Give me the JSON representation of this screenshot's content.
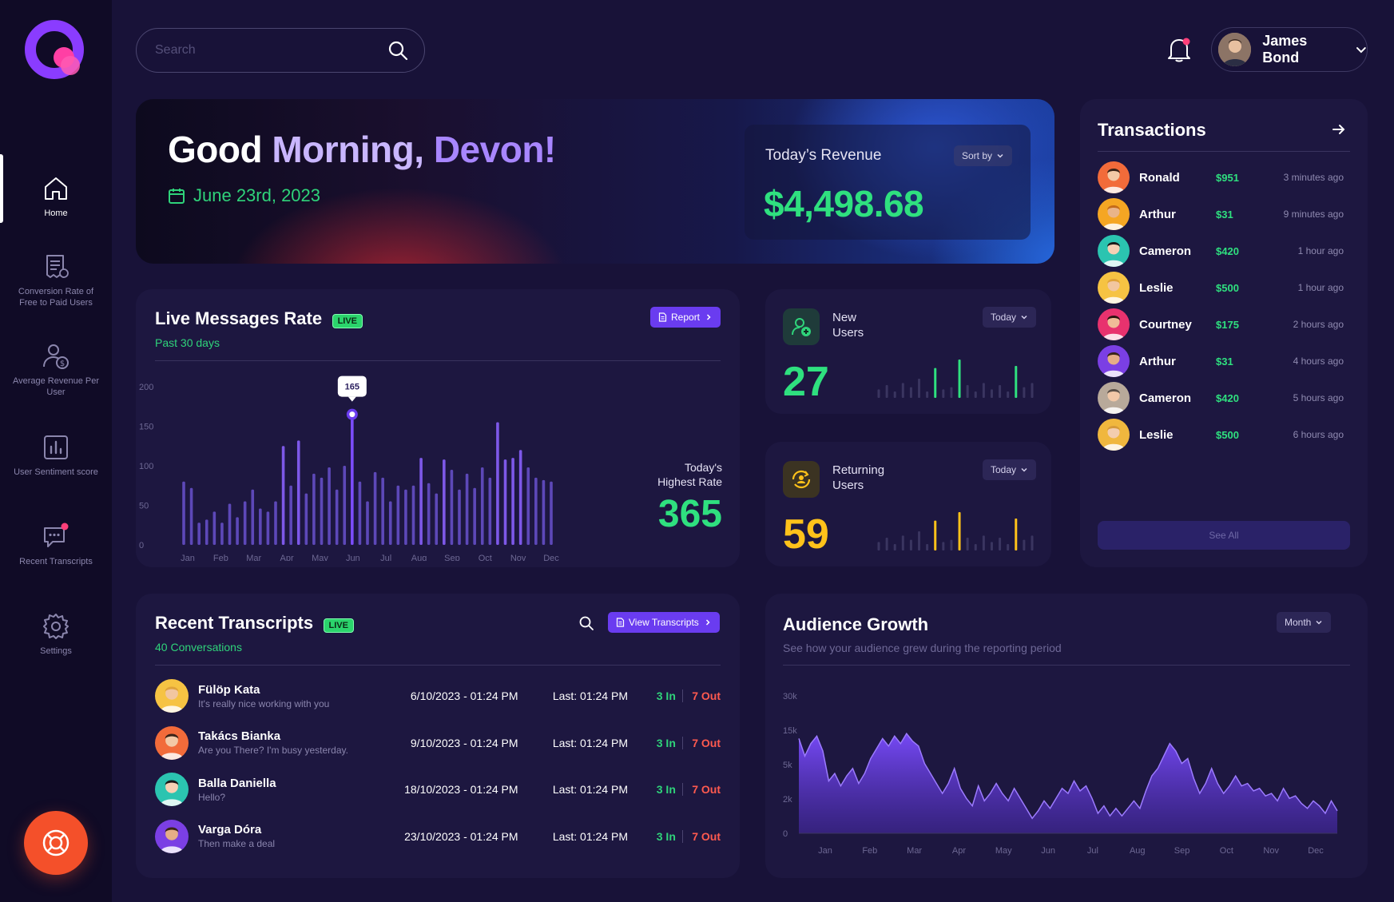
{
  "sidebar": {
    "items": [
      {
        "label": "Home"
      },
      {
        "label": "Conversion Rate of Free to Paid Users"
      },
      {
        "label": "Average Revenue Per User"
      },
      {
        "label": "User Sentiment score"
      },
      {
        "label": "Recent Transcripts"
      },
      {
        "label": "Settings"
      }
    ]
  },
  "header": {
    "search_placeholder": "Search",
    "user_name": "James Bond"
  },
  "hero": {
    "greeting_part1": "Good ",
    "greeting_part2": "Morning, ",
    "greeting_part3": "Devon!",
    "date": "June 23rd, 2023",
    "revenue_title": "Today’s Revenue",
    "revenue_sort": "Sort by",
    "revenue_value": "$4,498.68"
  },
  "live_messages": {
    "title": "Live Messages Rate",
    "live_badge": "LIVE",
    "subtitle": "Past 30 days",
    "report_label": "Report",
    "highest_label_line1": "Today's",
    "highest_label_line2": "Highest Rate",
    "highest_value": "365",
    "tooltip": "165"
  },
  "new_users": {
    "label_line1": "New",
    "label_line2": "Users",
    "period": "Today",
    "value": "27"
  },
  "returning_users": {
    "label_line1": "Returning",
    "label_line2": "Users",
    "period": "Today",
    "value": "59"
  },
  "transactions": {
    "title": "Transactions",
    "see_all": "See All",
    "rows": [
      {
        "name": "Ronald",
        "amount": "$951",
        "time": "3 minutes ago"
      },
      {
        "name": "Arthur",
        "amount": "$31",
        "time": "9 minutes ago"
      },
      {
        "name": "Cameron",
        "amount": "$420",
        "time": "1 hour ago"
      },
      {
        "name": "Leslie",
        "amount": "$500",
        "time": "1 hour ago"
      },
      {
        "name": "Courtney",
        "amount": "$175",
        "time": "2 hours ago"
      },
      {
        "name": "Arthur",
        "amount": "$31",
        "time": "4 hours ago"
      },
      {
        "name": "Cameron",
        "amount": "$420",
        "time": "5 hours ago"
      },
      {
        "name": "Leslie",
        "amount": "$500",
        "time": "6 hours ago"
      }
    ]
  },
  "transcripts": {
    "title": "Recent Transcripts",
    "live_badge": "LIVE",
    "subtitle": "40 Conversations",
    "view_label": "View Transcripts",
    "rows": [
      {
        "name": "Fülöp Kata",
        "message": "It's really nice working with you",
        "date": "6/10/2023  -  01:24 PM",
        "last": "Last: 01:24 PM",
        "in": "3 In",
        "out": "7 Out"
      },
      {
        "name": "Takács Bianka",
        "message": "Are you There? I'm busy yesterday.",
        "date": "9/10/2023  -  01:24 PM",
        "last": "Last: 01:24 PM",
        "in": "3 In",
        "out": "7 Out"
      },
      {
        "name": "Balla Daniella",
        "message": "Hello?",
        "date": "18/10/2023  -  01:24 PM",
        "last": "Last: 01:24 PM",
        "in": "3 In",
        "out": "7 Out"
      },
      {
        "name": "Varga Dóra",
        "message": "Then make a deal",
        "date": "23/10/2023  -  01:24 PM",
        "last": "Last: 01:24 PM",
        "in": "3 In",
        "out": "7 Out"
      }
    ]
  },
  "audience": {
    "title": "Audience Growth",
    "subtitle": "See how your audience grew during the reporting period",
    "period": "Month"
  },
  "colors": {
    "background": "#181238",
    "card": "#1d1740",
    "accent_purple": "#6a3cf0",
    "green": "#2fe07f",
    "yellow": "#ffc21a",
    "red": "#ff5a4f",
    "support": "#f4502a"
  },
  "chart_data": [
    {
      "type": "bar",
      "name_ref": "live_messages",
      "x_ticks": [
        "Jan",
        "Feb",
        "Mar",
        "Apr",
        "May",
        "Jun",
        "Jul",
        "Aug",
        "Sep",
        "Oct",
        "Nov",
        "Dec"
      ],
      "y_ticks": [
        "200",
        "150",
        "100",
        "50",
        "0"
      ],
      "ylim": [
        0,
        200
      ],
      "values": [
        80,
        72,
        28,
        32,
        42,
        28,
        52,
        35,
        55,
        70,
        46,
        42,
        55,
        125,
        75,
        132,
        65,
        90,
        85,
        98,
        70,
        100,
        165,
        80,
        55,
        92,
        85,
        55,
        75,
        70,
        75,
        110,
        78,
        65,
        108,
        95,
        70,
        90,
        72,
        98,
        85,
        155,
        108,
        110,
        120,
        98,
        85,
        82,
        80
      ],
      "highlight_index": 22,
      "highlight_value": 165
    },
    {
      "type": "bar",
      "name_ref": "new_users",
      "values": [
        4,
        6,
        3,
        7,
        5,
        9,
        3,
        14,
        4,
        5,
        18,
        6,
        3,
        7,
        4,
        6,
        3,
        15,
        5,
        7
      ],
      "highlight": [
        7,
        10,
        17
      ]
    },
    {
      "type": "bar",
      "name_ref": "returning_users",
      "values": [
        4,
        6,
        3,
        7,
        5,
        9,
        3,
        14,
        4,
        5,
        18,
        6,
        3,
        7,
        4,
        6,
        3,
        15,
        5,
        7
      ],
      "highlight": [
        7,
        10,
        17
      ]
    },
    {
      "type": "area",
      "name_ref": "audience",
      "x_ticks": [
        "Jan",
        "Feb",
        "Mar",
        "Apr",
        "May",
        "Jun",
        "Jul",
        "Aug",
        "Sep",
        "Oct",
        "Nov",
        "Dec"
      ],
      "y_ticks": [
        "30k",
        "15k",
        "5k",
        "2k",
        "0"
      ],
      "values": [
        3.8,
        3.1,
        3.6,
        3.9,
        3.3,
        2.1,
        2.4,
        1.9,
        2.3,
        2.6,
        2.0,
        2.4,
        3.0,
        3.4,
        3.8,
        3.5,
        3.9,
        3.6,
        4.0,
        3.7,
        3.5,
        2.8,
        2.4,
        2.0,
        1.6,
        2.0,
        2.6,
        1.8,
        1.4,
        1.1,
        1.9,
        1.3,
        1.6,
        2.0,
        1.6,
        1.3,
        1.8,
        1.4,
        1.0,
        0.6,
        0.9,
        1.3,
        1.0,
        1.4,
        1.8,
        1.6,
        2.1,
        1.7,
        1.9,
        1.4,
        0.8,
        1.1,
        0.7,
        1.0,
        0.7,
        1.0,
        1.3,
        1.0,
        1.7,
        2.3,
        2.6,
        3.1,
        3.6,
        3.3,
        2.8,
        3.0,
        2.2,
        1.6,
        2.0,
        2.6,
        2.0,
        1.6,
        1.9,
        2.3,
        1.9,
        2.0,
        1.7,
        1.8,
        1.5,
        1.6,
        1.3,
        1.8,
        1.4,
        1.5,
        1.2,
        1.0,
        1.3,
        1.1,
        0.8,
        1.3,
        0.9
      ]
    }
  ]
}
